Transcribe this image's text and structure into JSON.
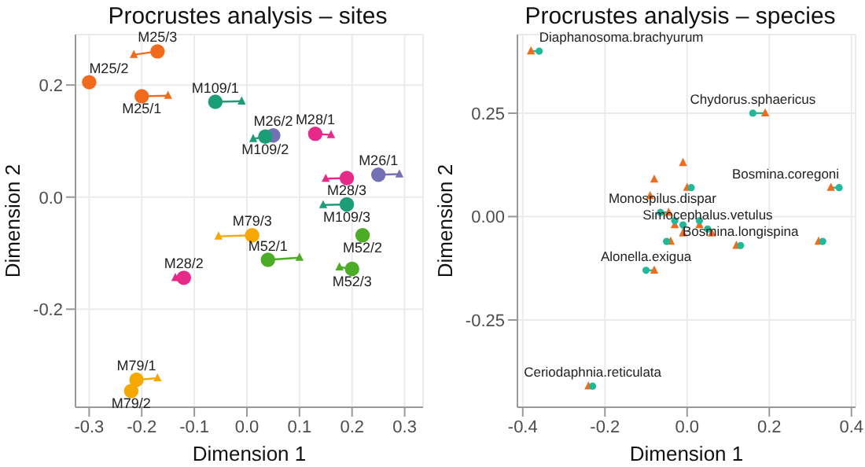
{
  "chart_data": [
    {
      "type": "scatter",
      "title": "Procrustes analysis – sites",
      "xlabel": "Dimension 1",
      "ylabel": "Dimension 2",
      "xlim": [
        -0.326,
        0.335
      ],
      "ylim": [
        -0.375,
        0.29
      ],
      "xticks": [
        {
          "value": -0.3,
          "label": "-0.3"
        },
        {
          "value": -0.2,
          "label": "-0.2"
        },
        {
          "value": -0.1,
          "label": "-0.1"
        },
        {
          "value": 0,
          "label": "0.0"
        },
        {
          "value": 0.1,
          "label": "0.1"
        },
        {
          "value": 0.2,
          "label": "0.2"
        },
        {
          "value": 0.3,
          "label": "0.3"
        }
      ],
      "yticks": [
        {
          "value": -0.2,
          "label": "-0.2"
        },
        {
          "value": 0,
          "label": "0.0"
        },
        {
          "value": 0.2,
          "label": "0.2"
        }
      ],
      "grid": true,
      "series": [
        {
          "type": "scatter",
          "marker": "circle",
          "x": [
            -0.17,
            -0.3,
            -0.2,
            -0.06,
            0.05,
            0.035,
            0.13,
            0.25,
            0.19,
            0.19,
            0.01,
            0.22,
            0.04,
            0.2,
            -0.12,
            -0.21,
            -0.22
          ],
          "values": [
            0.26,
            0.205,
            0.18,
            0.17,
            0.11,
            0.108,
            0.113,
            0.04,
            0.034,
            -0.013,
            -0.068,
            -0.068,
            -0.112,
            -0.128,
            -0.144,
            -0.326,
            -0.346
          ],
          "colors": [
            "#f26b1d",
            "#f26b1d",
            "#f26b1d",
            "#1b9e77",
            "#7570b3",
            "#1b9e77",
            "#e7298a",
            "#7570b3",
            "#e7298a",
            "#1b9e77",
            "#f5a800",
            "#4dac26",
            "#4dac26",
            "#4dac26",
            "#e7298a",
            "#f5a800",
            "#f5a800"
          ]
        },
        {
          "type": "scatter",
          "marker": "triangle",
          "x": [
            -0.215,
            null,
            -0.15,
            -0.01,
            null,
            0.012,
            0.16,
            0.29,
            0.15,
            0.145,
            -0.054,
            null,
            0.1,
            0.176,
            -0.136,
            -0.17,
            null
          ],
          "values": [
            0.254,
            null,
            0.181,
            0.171,
            null,
            0.104,
            0.111,
            0.041,
            0.033,
            -0.014,
            -0.07,
            null,
            -0.108,
            -0.125,
            -0.144,
            -0.323,
            null
          ],
          "colors": [
            "#f26b1d",
            null,
            "#f26b1d",
            "#1b9e77",
            null,
            "#1b9e77",
            "#e7298a",
            "#7570b3",
            "#e7298a",
            "#1b9e77",
            "#f5a800",
            null,
            "#4dac26",
            "#4dac26",
            "#e7298a",
            "#f5a800",
            null
          ]
        }
      ],
      "annotations": [
        {
          "text": "M25/3",
          "x": -0.17,
          "y": 0.26
        },
        {
          "text": "M25/2",
          "x": -0.3,
          "y": 0.205
        },
        {
          "text": "M25/1",
          "x": -0.2,
          "y": 0.18
        },
        {
          "text": "M109/1",
          "x": -0.06,
          "y": 0.17
        },
        {
          "text": "M26/2",
          "x": 0.05,
          "y": 0.11
        },
        {
          "text": "M109/2",
          "x": 0.035,
          "y": 0.108
        },
        {
          "text": "M28/1",
          "x": 0.13,
          "y": 0.113
        },
        {
          "text": "M26/1",
          "x": 0.25,
          "y": 0.04
        },
        {
          "text": "M28/3",
          "x": 0.19,
          "y": 0.034
        },
        {
          "text": "M109/3",
          "x": 0.19,
          "y": -0.013
        },
        {
          "text": "M79/3",
          "x": 0.01,
          "y": -0.068
        },
        {
          "text": "M52/2",
          "x": 0.22,
          "y": -0.068
        },
        {
          "text": "M52/1",
          "x": 0.04,
          "y": -0.112
        },
        {
          "text": "M52/3",
          "x": 0.2,
          "y": -0.128
        },
        {
          "text": "M28/2",
          "x": -0.12,
          "y": -0.144
        },
        {
          "text": "M79/1",
          "x": -0.21,
          "y": -0.326
        },
        {
          "text": "M79/2",
          "x": -0.22,
          "y": -0.346
        }
      ]
    },
    {
      "type": "scatter",
      "title": "Procrustes analysis – species",
      "xlabel": "Dimension 1",
      "ylabel": "Dimension 2",
      "xlim": [
        -0.413,
        0.41
      ],
      "ylim": [
        -0.461,
        0.44
      ],
      "xticks": [
        {
          "value": -0.4,
          "label": "-0.4"
        },
        {
          "value": -0.2,
          "label": "-0.2"
        },
        {
          "value": 0,
          "label": "0.0"
        },
        {
          "value": 0.2,
          "label": "0.2"
        },
        {
          "value": 0.4,
          "label": "0.4"
        }
      ],
      "yticks": [
        {
          "value": -0.25,
          "label": "-0.25"
        },
        {
          "value": 0,
          "label": "0.00"
        },
        {
          "value": 0.25,
          "label": "0.25"
        }
      ],
      "grid": true,
      "series": [
        {
          "type": "scatter",
          "marker": "circle",
          "color": "#21b99a",
          "x": [
            -0.36,
            0.16,
            0.37,
            null,
            null,
            null,
            0.01,
            -0.065,
            0.05,
            -0.05,
            0.13,
            0.33,
            -0.1,
            -0.23,
            -0.01,
            0.03,
            -0.03
          ],
          "values": [
            0.4,
            0.25,
            0.07,
            null,
            null,
            null,
            0.07,
            0.01,
            -0.03,
            -0.06,
            -0.07,
            -0.06,
            -0.13,
            -0.41,
            -0.02,
            -0.01,
            -0.01
          ]
        },
        {
          "type": "scatter",
          "marker": "triangle",
          "color": "#f26b1d",
          "x": [
            -0.38,
            0.19,
            0.35,
            -0.01,
            -0.08,
            -0.09,
            0.0,
            -0.045,
            0.06,
            -0.04,
            0.12,
            0.32,
            -0.08,
            -0.24,
            -0.01,
            0.03,
            -0.03
          ],
          "values": [
            0.4,
            0.25,
            0.07,
            0.13,
            0.09,
            0.05,
            0.07,
            0.01,
            -0.04,
            -0.06,
            -0.07,
            -0.06,
            -0.13,
            -0.41,
            -0.04,
            -0.02,
            -0.02
          ]
        }
      ],
      "annotations": [
        {
          "text": "Diaphanosoma.brachyurum",
          "x": -0.36,
          "y": 0.4
        },
        {
          "text": "Chydorus.sphaericus",
          "x": 0.16,
          "y": 0.25
        },
        {
          "text": "Bosmina.coregoni",
          "x": 0.37,
          "y": 0.07
        },
        {
          "text": "Monospilus.dispar",
          "x": -0.06,
          "y": 0.01
        },
        {
          "text": "Simocephalus.vetulus",
          "x": 0.05,
          "y": -0.03
        },
        {
          "text": "Bosmina.longispina",
          "x": 0.13,
          "y": -0.07
        },
        {
          "text": "Alonella.exigua",
          "x": -0.1,
          "y": -0.13
        },
        {
          "text": "Ceriodaphnia.reticulata",
          "x": -0.23,
          "y": -0.41
        }
      ]
    }
  ]
}
